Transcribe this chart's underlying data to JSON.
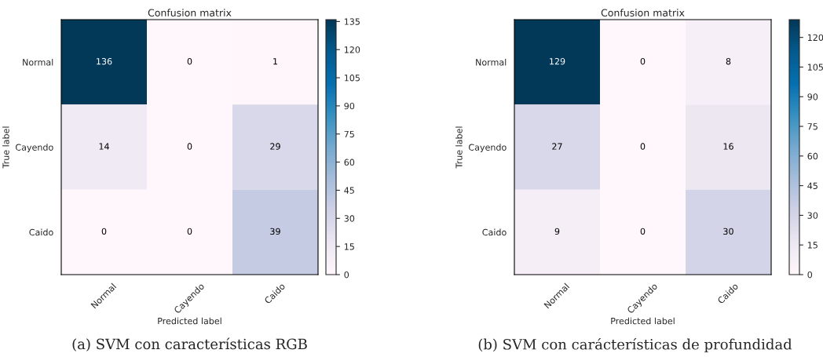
{
  "chart_data": [
    {
      "type": "heatmap",
      "title": "Confusion matrix",
      "xlabel": "Predicted label",
      "ylabel": "True label",
      "categories": [
        "Normal",
        "Cayendo",
        "Caido"
      ],
      "y_categories": [
        "Normal",
        "Cayendo",
        "Caido"
      ],
      "cells": [
        [
          136,
          0,
          1
        ],
        [
          14,
          0,
          29
        ],
        [
          0,
          0,
          39
        ]
      ],
      "data_labels": true,
      "clim": [
        0,
        136
      ],
      "cticks": [
        0,
        15,
        30,
        45,
        60,
        75,
        90,
        105,
        120,
        135
      ],
      "annotations": [
        "(a) SVM con características RGB"
      ]
    },
    {
      "type": "heatmap",
      "title": "Confusion matrix",
      "xlabel": "Predicted label",
      "ylabel": "True label",
      "categories": [
        "Normal",
        "Cayendo",
        "Caido"
      ],
      "y_categories": [
        "Normal",
        "Cayendo",
        "Caido"
      ],
      "cells": [
        [
          129,
          0,
          8
        ],
        [
          27,
          0,
          16
        ],
        [
          9,
          0,
          30
        ]
      ],
      "data_labels": true,
      "clim": [
        0,
        129
      ],
      "cticks": [
        0,
        15,
        30,
        45,
        60,
        75,
        90,
        105,
        120
      ],
      "annotations": [
        "(b) SVM con carácterísticas de profundidad"
      ]
    }
  ]
}
